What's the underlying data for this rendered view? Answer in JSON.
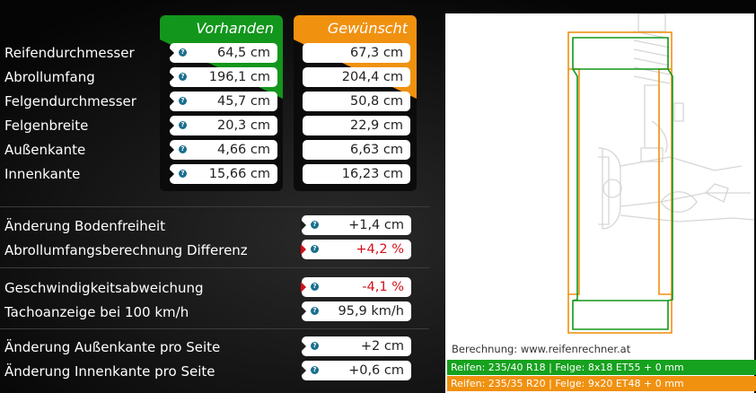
{
  "headers": {
    "current": "Vorhanden",
    "desired": "Gewünscht"
  },
  "tire_rows": [
    {
      "label": "Reifendurchmesser",
      "current": "64,5 cm",
      "desired": "67,3 cm"
    },
    {
      "label": "Abrollumfang",
      "current": "196,1 cm",
      "desired": "204,4 cm"
    },
    {
      "label": "Felgendurchmesser",
      "current": "45,7 cm",
      "desired": "50,8 cm"
    },
    {
      "label": "Felgenbreite",
      "current": "20,3 cm",
      "desired": "22,9 cm"
    },
    {
      "label": "Außenkante",
      "current": "4,66 cm",
      "desired": "6,63 cm"
    },
    {
      "label": "Innenkante",
      "current": "15,66 cm",
      "desired": "16,23 cm"
    }
  ],
  "diff_rows": [
    {
      "label": "Änderung Bodenfreiheit",
      "value": "+1,4 cm",
      "warn": false
    },
    {
      "label": "Abrollumfangsberechnung Differenz",
      "value": "+4,2 %",
      "warn": true
    },
    {
      "label": "Geschwindigkeitsabweichung",
      "value": "-4,1 %",
      "warn": true
    },
    {
      "label": "Tachoanzeige bei 100 km/h",
      "value": "95,9 km/h",
      "warn": false
    },
    {
      "label": "Änderung Außenkante pro Seite",
      "value": "+2 cm",
      "warn": false
    },
    {
      "label": "Änderung Innenkante pro Seite",
      "value": "+0,6 cm",
      "warn": false
    }
  ],
  "help_glyph": "?",
  "help_icon_color": "#1a6f8e",
  "accent_current": "#13961c",
  "accent_desired": "#f09110",
  "warn_color": "#d4101a",
  "diagram": {
    "source": "Berechnung: www.reifenrechner.at",
    "current_spec": "Reifen: 235/40 R18  |  Felge: 8x18 ET55 + 0 mm",
    "desired_spec": "Reifen: 235/35 R20  |  Felge: 9x20 ET48 + 0 mm"
  }
}
